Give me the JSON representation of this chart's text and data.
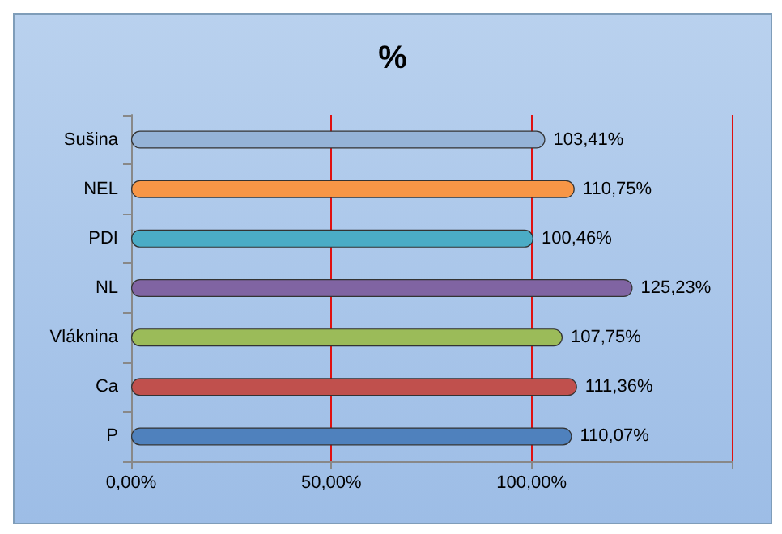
{
  "chart_data": {
    "type": "bar",
    "title": "%",
    "orientation": "horizontal",
    "categories": [
      "Sušina",
      "NEL",
      "PDI",
      "NL",
      "Vláknina",
      "Ca",
      "P"
    ],
    "values": [
      103.41,
      110.75,
      100.46,
      125.23,
      107.75,
      111.36,
      110.07
    ],
    "colors": [
      "#95b3d7",
      "#f79646",
      "#4bacc6",
      "#8064a2",
      "#9bbb59",
      "#c0504d",
      "#4f81bd"
    ],
    "value_labels": [
      "103,41%",
      "110,75%",
      "100,46%",
      "125,23%",
      "107,75%",
      "111,36%",
      "110,07%"
    ],
    "xlim": [
      0,
      150
    ],
    "xticks": [
      {
        "value": 0,
        "label": "0,00%"
      },
      {
        "value": 50,
        "label": "50,00%"
      },
      {
        "value": 100,
        "label": "100,00%"
      },
      {
        "value": 150,
        "label": null
      }
    ],
    "grid": "x"
  }
}
